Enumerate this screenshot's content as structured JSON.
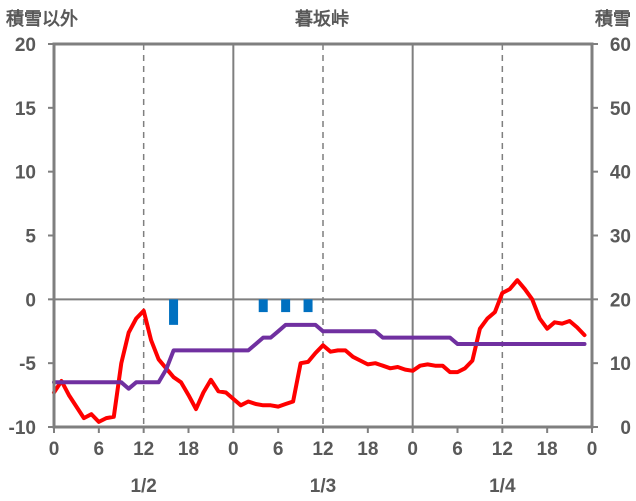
{
  "chart_data": {
    "type": "line",
    "title": "暮坂峠",
    "ylabel_left": "積雪以外",
    "ylabel_right": "積雪",
    "ylim_left": [
      -10,
      20
    ],
    "ylim_right": [
      0,
      60
    ],
    "y_ticks_left": [
      "20",
      "15",
      "10",
      "5",
      "0",
      "-5",
      "-10"
    ],
    "y_ticks_right": [
      "60",
      "50",
      "40",
      "30",
      "20",
      "10",
      "0"
    ],
    "x_range_hours": [
      0,
      72
    ],
    "x_tick_labels": [
      "0",
      "6",
      "12",
      "18",
      "0",
      "6",
      "12",
      "18",
      "0",
      "6",
      "12",
      "18",
      "0"
    ],
    "date_labels": [
      "1/2",
      "1/3",
      "1/4"
    ],
    "grid": "dashed at 12h, solid at day boundaries, horizontal at 0",
    "series": [
      {
        "axis": "left",
        "color": "#ff0000",
        "x": [
          0,
          1,
          2,
          3,
          4,
          5,
          6,
          7,
          8,
          9,
          10,
          11,
          12,
          13,
          14,
          15,
          16,
          17,
          18,
          19,
          20,
          21,
          22,
          23,
          24,
          25,
          26,
          27,
          28,
          29,
          30,
          31,
          32,
          33,
          34,
          35,
          36,
          37,
          38,
          39,
          40,
          41,
          42,
          43,
          44,
          45,
          46,
          47,
          48,
          49,
          50,
          51,
          52,
          53,
          54,
          55,
          56,
          57,
          58,
          59,
          60,
          61,
          62,
          63,
          64,
          65,
          66,
          67,
          68,
          69,
          70,
          71
        ],
        "values": [
          -7.3,
          -6.4,
          -7.5,
          -8.4,
          -9.3,
          -9,
          -9.6,
          -9.3,
          -9.2,
          -5,
          -2.6,
          -1.5,
          -0.9,
          -3.2,
          -4.7,
          -5.4,
          -6.1,
          -6.5,
          -7.5,
          -8.6,
          -7.3,
          -6.3,
          -7.2,
          -7.3,
          -7.8,
          -8.3,
          -8,
          -8.2,
          -8.3,
          -8.3,
          -8.4,
          -8.2,
          -8,
          -5,
          -4.9,
          -4.2,
          -3.6,
          -4.1,
          -4,
          -4,
          -4.5,
          -4.8,
          -5.1,
          -5,
          -5.2,
          -5.4,
          -5.3,
          -5.5,
          -5.6,
          -5.2,
          -5.1,
          -5.2,
          -5.2,
          -5.7,
          -5.7,
          -5.4,
          -4.8,
          -2.3,
          -1.5,
          -1,
          0.5,
          0.8,
          1.5,
          0.8,
          0,
          -1.5,
          -2.3,
          -1.8,
          -1.9,
          -1.7,
          -2.2,
          -2.8
        ]
      },
      {
        "axis": "right",
        "color": "#7030a0",
        "x": [
          0,
          1,
          2,
          3,
          4,
          5,
          6,
          7,
          8,
          9,
          10,
          11,
          12,
          13,
          14,
          15,
          16,
          17,
          18,
          19,
          20,
          21,
          22,
          23,
          24,
          25,
          26,
          27,
          28,
          29,
          30,
          31,
          32,
          33,
          34,
          35,
          36,
          37,
          38,
          39,
          40,
          41,
          42,
          43,
          44,
          45,
          46,
          47,
          48,
          49,
          50,
          51,
          52,
          53,
          54,
          55,
          56,
          57,
          58,
          59,
          60,
          61,
          62,
          63,
          64,
          65,
          66,
          67,
          68,
          69,
          70,
          71
        ],
        "values": [
          7,
          7,
          7,
          7,
          7,
          7,
          7,
          7,
          7,
          7,
          6,
          7,
          7,
          7,
          7,
          9,
          12,
          12,
          12,
          12,
          12,
          12,
          12,
          12,
          12,
          12,
          12,
          13,
          14,
          14,
          15,
          16,
          16,
          16,
          16,
          16,
          15,
          15,
          15,
          15,
          15,
          15,
          15,
          15,
          14,
          14,
          14,
          14,
          14,
          14,
          14,
          14,
          14,
          14,
          13,
          13,
          13,
          13,
          13,
          13,
          13,
          13,
          13,
          13,
          13,
          13,
          13,
          13,
          13,
          13,
          13,
          13
        ]
      },
      {
        "axis": "left",
        "color": "#0070c0",
        "type": "bar",
        "x": [
          16,
          28,
          31,
          34
        ],
        "values": [
          -2,
          -1,
          -1,
          -1
        ]
      }
    ]
  }
}
